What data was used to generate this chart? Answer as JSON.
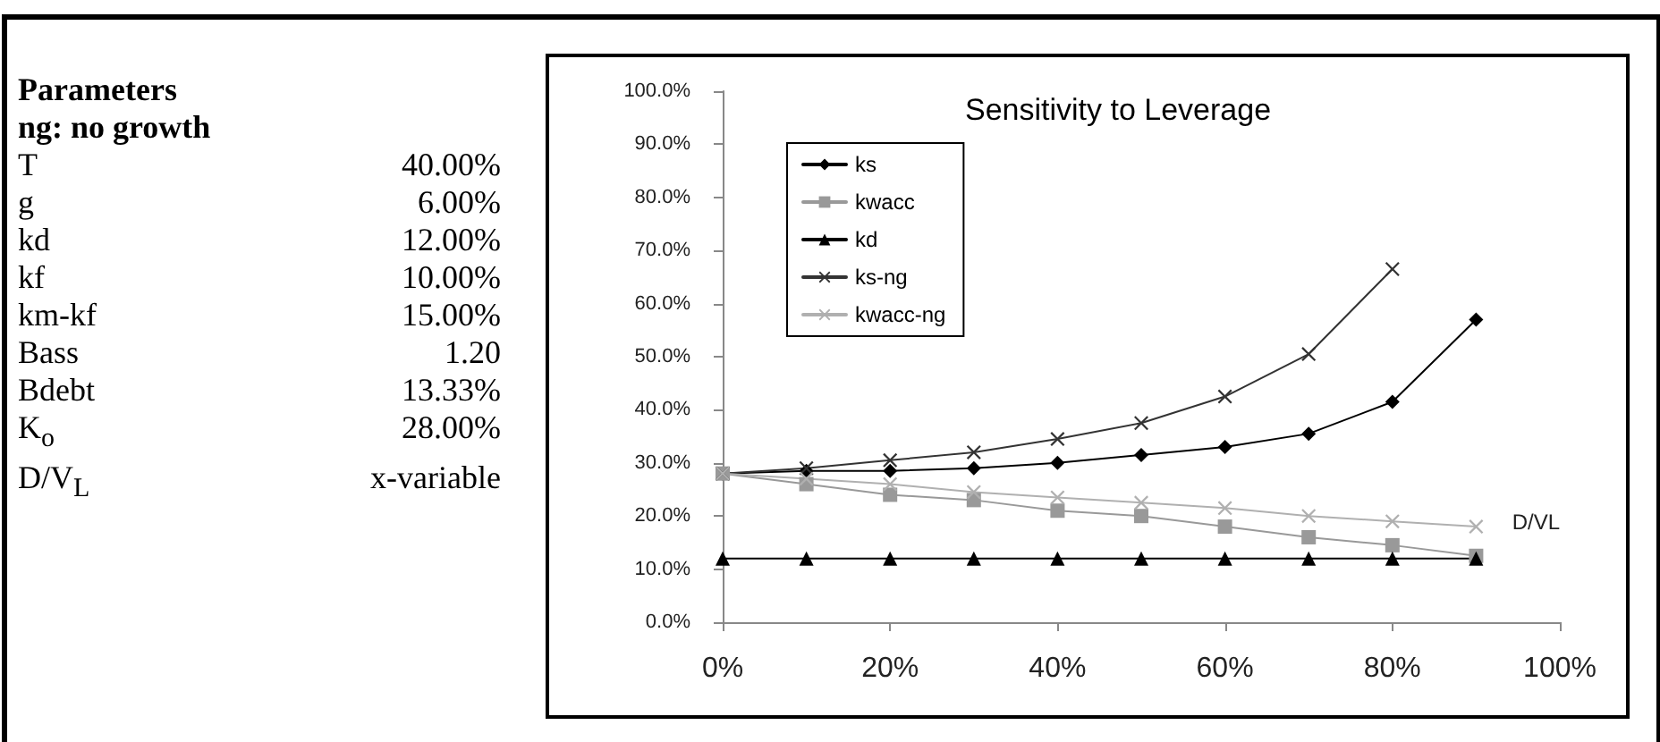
{
  "chart_data": [
    {
      "type": "other",
      "title": "Parameters",
      "subtitle": "ng: no growth",
      "categories": [
        "T",
        "g",
        "kd",
        "kf",
        "km-kf",
        "Bass",
        "Bdebt",
        "K$_{o}$",
        "D/V$_{L}$"
      ],
      "value_labels": [
        "40.00%",
        "6.00%",
        "12.00%",
        "10.00%",
        "15.00%",
        "1.20",
        "13.33%",
        "28.00%",
        "x-variable"
      ]
    },
    {
      "type": "line",
      "title": "Sensitivity to Leverage",
      "xlabel": "D/VL",
      "x": [
        0,
        10,
        20,
        30,
        40,
        50,
        60,
        70,
        80,
        90
      ],
      "xlim": [
        0,
        100
      ],
      "xticks": [
        {
          "value": 0,
          "label": "0%"
        },
        {
          "value": 20,
          "label": "20%"
        },
        {
          "value": 40,
          "label": "40%"
        },
        {
          "value": 60,
          "label": "60%"
        },
        {
          "value": 80,
          "label": "80%"
        },
        {
          "value": 100,
          "label": "100%"
        }
      ],
      "ylim": [
        0,
        100
      ],
      "yticks": [
        {
          "value": 0,
          "label": "0.0%"
        },
        {
          "value": 10,
          "label": "10.0%"
        },
        {
          "value": 20,
          "label": "20.0%"
        },
        {
          "value": 30,
          "label": "30.0%"
        },
        {
          "value": 40,
          "label": "40.0%"
        },
        {
          "value": 50,
          "label": "50.0%"
        },
        {
          "value": 60,
          "label": "60.0%"
        },
        {
          "value": 70,
          "label": "70.0%"
        },
        {
          "value": 80,
          "label": "80.0%"
        },
        {
          "value": 90,
          "label": "90.0%"
        },
        {
          "value": 100,
          "label": "100.0%"
        }
      ],
      "series": [
        {
          "name": "ks",
          "color": "#000000",
          "marker": "diamond",
          "values": [
            28,
            28.5,
            28.5,
            29,
            30,
            31.5,
            33,
            35.5,
            41.5,
            57
          ]
        },
        {
          "name": "kwacc",
          "color": "#999999",
          "marker": "square",
          "values": [
            28,
            26,
            24,
            23,
            21,
            20,
            18,
            16,
            14.5,
            12.5
          ]
        },
        {
          "name": "kd",
          "color": "#000000",
          "marker": "triangle",
          "values": [
            12,
            12,
            12,
            12,
            12,
            12,
            12,
            12,
            12,
            12
          ]
        },
        {
          "name": "ks-ng",
          "color": "#333333",
          "marker": "cross",
          "values": [
            28,
            29,
            30.5,
            32,
            34.5,
            37.5,
            42.5,
            50.5,
            66.5,
            null
          ]
        },
        {
          "name": "kwacc-ng",
          "color": "#b0b0b0",
          "marker": "cross",
          "values": [
            28,
            27,
            26,
            24.5,
            23.5,
            22.5,
            21.5,
            20,
            19,
            18
          ]
        }
      ],
      "legend": "top left",
      "grid": false,
      "line_style": "solid"
    }
  ]
}
